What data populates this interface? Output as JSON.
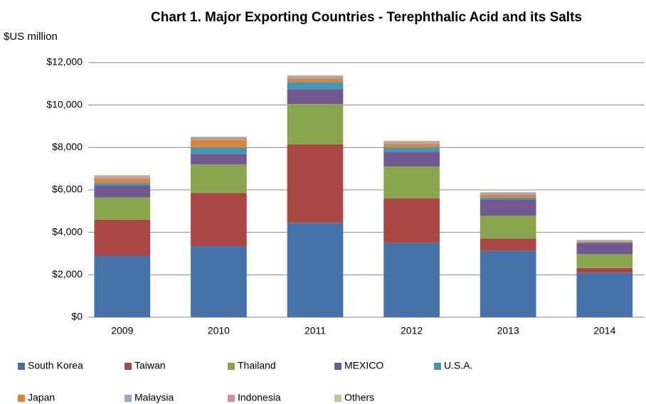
{
  "chart_data": {
    "type": "stacked_bar",
    "title": "Chart 1. Major Exporting Countries - Terephthalic Acid and its Salts",
    "y_label": "$US million",
    "categories": [
      "2009",
      "2010",
      "2011",
      "2012",
      "2013",
      "2014"
    ],
    "series": [
      {
        "name": "South Korea",
        "color": "#4572a7",
        "values": [
          2900,
          3350,
          4450,
          3500,
          3130,
          2100
        ]
      },
      {
        "name": "Taiwan",
        "color": "#aa4643",
        "values": [
          1700,
          2500,
          3700,
          2100,
          580,
          220
        ]
      },
      {
        "name": "Thailand",
        "color": "#89a54e",
        "values": [
          1050,
          1350,
          1900,
          1500,
          1070,
          650
        ]
      },
      {
        "name": "MEXICO",
        "color": "#71588f",
        "values": [
          550,
          500,
          700,
          700,
          770,
          520
        ]
      },
      {
        "name": "U.S.A.",
        "color": "#4198af",
        "values": [
          120,
          300,
          330,
          200,
          90,
          30
        ]
      },
      {
        "name": "Japan",
        "color": "#db843d",
        "values": [
          220,
          370,
          170,
          160,
          130,
          40
        ]
      },
      {
        "name": "Malaysia",
        "color": "#93a9cf",
        "values": [
          60,
          60,
          60,
          60,
          60,
          20
        ]
      },
      {
        "name": "Indonesia",
        "color": "#d19392",
        "values": [
          60,
          50,
          60,
          60,
          40,
          50
        ]
      },
      {
        "name": "Others",
        "color": "#b9cd96",
        "values": [
          40,
          30,
          40,
          40,
          30,
          20
        ]
      }
    ],
    "ylim": [
      0,
      12000
    ],
    "yticks": [
      {
        "value": 0,
        "label": "$0"
      },
      {
        "value": 2000,
        "label": "$2,000"
      },
      {
        "value": 4000,
        "label": "$4,000"
      },
      {
        "value": 6000,
        "label": "$6,000"
      },
      {
        "value": 8000,
        "label": "$8,000"
      },
      {
        "value": 10000,
        "label": "$10,000"
      },
      {
        "value": 12000,
        "label": "$12,000"
      }
    ],
    "grid": true
  }
}
